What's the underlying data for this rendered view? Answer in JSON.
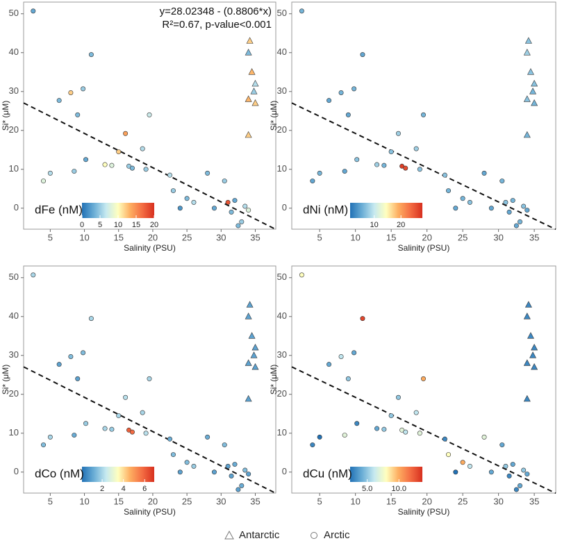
{
  "legend": [
    {
      "name": "Antarctic",
      "marker": "triangle"
    },
    {
      "name": "Arctic",
      "marker": "circle"
    }
  ],
  "colormap": [
    "#2171b5",
    "#6baed6",
    "#c6e9f0",
    "#ffffbf",
    "#fdae61",
    "#f46d43",
    "#d7301f"
  ],
  "chart_data": [
    {
      "type": "scatter",
      "xlabel": "Salinity (PSU)",
      "ylabel": "Si* (μM)",
      "xlim": [
        1.1,
        38
      ],
      "ylim": [
        -5.4,
        53
      ],
      "xticks": [
        5,
        10,
        15,
        20,
        25,
        30,
        35
      ],
      "yticks": [
        0,
        10,
        20,
        30,
        40,
        50
      ],
      "annotation": [
        "y=28.02348 - (0.8806*x)",
        "R²=0.67, p-value<0.001"
      ],
      "fit": {
        "intercept": 28.02348,
        "slope": -0.8806
      },
      "colorbar": {
        "label": "dFe (nM)",
        "range": [
          0,
          20
        ],
        "ticks": [
          0,
          5,
          10,
          15,
          20
        ]
      },
      "series": [
        {
          "x": [
            34,
            34,
            34.2,
            34,
            34.5,
            34.8,
            35,
            35
          ],
          "y": [
            28,
            18.8,
            43,
            40,
            35,
            30,
            32,
            27
          ],
          "c": [
            13,
            12,
            12,
            4,
            13,
            5,
            6,
            12
          ]
        },
        {
          "x": [
            2.5,
            4,
            5,
            6.3,
            8,
            8.5,
            9,
            9.8,
            10.2,
            11,
            13,
            14,
            15,
            16,
            16.5,
            17,
            18.5,
            19,
            19.5,
            22.5,
            23,
            24,
            25,
            26,
            28,
            29,
            30.5,
            31,
            31.5,
            32,
            32.5,
            33,
            33.5,
            34
          ],
          "y": [
            50.7,
            7,
            9,
            27.7,
            29.7,
            9.5,
            24,
            30.7,
            12.5,
            39.5,
            11.2,
            11,
            14.5,
            19.2,
            10.8,
            10.3,
            15.3,
            10,
            24,
            8.5,
            4.5,
            0,
            2.5,
            1.5,
            9,
            0,
            7,
            1.5,
            -1,
            2,
            -4.5,
            -3.5,
            0.5,
            -0.5
          ],
          "c": [
            3,
            8,
            6,
            4,
            12,
            5,
            4,
            5,
            3,
            4,
            10,
            8,
            12,
            14,
            5,
            4,
            6,
            5,
            7,
            6,
            5,
            2,
            4,
            6,
            4,
            3,
            5,
            18,
            4,
            3,
            4,
            5,
            6,
            8
          ]
        }
      ]
    },
    {
      "type": "scatter",
      "xlabel": "Salinity (PSU)",
      "ylabel": "Si* (μM)",
      "xlim": [
        1.1,
        38
      ],
      "ylim": [
        -5.4,
        53
      ],
      "xticks": [
        5,
        10,
        15,
        20,
        25,
        30,
        35
      ],
      "yticks": [
        0,
        10,
        20,
        30,
        40,
        50
      ],
      "fit": {
        "intercept": 28.02348,
        "slope": -0.8806
      },
      "colorbar": {
        "label": "dNi (nM)",
        "range": [
          1,
          28
        ],
        "ticks": [
          10,
          20
        ]
      },
      "series": [
        {
          "x": [
            34,
            34,
            34.2,
            34,
            34.5,
            34.8,
            35,
            35
          ],
          "y": [
            28,
            18.8,
            43,
            40,
            35,
            30,
            32,
            27
          ],
          "c": [
            7,
            6,
            7,
            8,
            7,
            6,
            7,
            6
          ]
        },
        {
          "x": [
            2.5,
            4,
            5,
            6.3,
            8,
            8.5,
            9,
            9.8,
            10.2,
            11,
            13,
            14,
            15,
            16,
            16.5,
            17,
            18.5,
            19,
            19.5,
            22.5,
            23,
            24,
            25,
            26,
            28,
            29,
            30.5,
            31,
            31.5,
            32,
            32.5,
            33,
            33.5,
            34
          ],
          "y": [
            50.7,
            7,
            9,
            27.7,
            29.7,
            9.5,
            24,
            30.7,
            12.5,
            39.5,
            11.2,
            11,
            14.5,
            19.2,
            10.8,
            10.3,
            15.3,
            10,
            24,
            8.5,
            4.5,
            0,
            2.5,
            1.5,
            9,
            0,
            7,
            1.5,
            -1,
            2,
            -4.5,
            -3.5,
            0.5,
            -0.5
          ],
          "c": [
            6,
            5,
            6,
            5,
            6,
            5,
            5,
            6,
            7,
            5,
            8,
            6,
            7,
            8,
            27,
            26,
            8,
            7,
            6,
            7,
            6,
            5,
            6,
            7,
            5,
            5,
            6,
            7,
            5,
            6,
            5,
            6,
            7,
            5
          ]
        }
      ]
    },
    {
      "type": "scatter",
      "xlabel": "Salinity (PSU)",
      "ylabel": "Si* (μM)",
      "xlim": [
        1.1,
        38
      ],
      "ylim": [
        -5.4,
        53
      ],
      "xticks": [
        5,
        10,
        15,
        20,
        25,
        30,
        35
      ],
      "yticks": [
        0,
        10,
        20,
        30,
        40,
        50
      ],
      "fit": {
        "intercept": 28.02348,
        "slope": -0.8806
      },
      "colorbar": {
        "label": "dCo (nM)",
        "range": [
          0.1,
          6.9
        ],
        "ticks": [
          2,
          4,
          6
        ]
      },
      "series": [
        {
          "x": [
            34,
            34,
            34.2,
            34,
            34.5,
            34.8,
            35,
            35
          ],
          "y": [
            28,
            18.8,
            43,
            40,
            35,
            30,
            32,
            27
          ],
          "c": [
            1,
            1,
            1,
            1,
            1,
            1,
            1,
            1
          ]
        },
        {
          "x": [
            2.5,
            4,
            5,
            6.3,
            8,
            8.5,
            9,
            9.8,
            10.2,
            11,
            13,
            14,
            15,
            16,
            16.5,
            17,
            18.5,
            19,
            19.5,
            22.5,
            23,
            24,
            25,
            26,
            28,
            29,
            30.5,
            31,
            31.5,
            32,
            32.5,
            33,
            33.5,
            34
          ],
          "y": [
            50.7,
            7,
            9,
            27.7,
            29.7,
            9.5,
            24,
            30.7,
            12.5,
            39.5,
            11.2,
            11,
            14.5,
            19.2,
            10.8,
            10.3,
            15.3,
            10,
            24,
            8.5,
            4.5,
            0,
            2.5,
            1.5,
            9,
            0,
            7,
            1.5,
            -1,
            2,
            -4.5,
            -3.5,
            0.5,
            -0.5
          ],
          "c": [
            2,
            1.5,
            2,
            1,
            1.5,
            1.2,
            1,
            1.5,
            1.8,
            2,
            2,
            1.8,
            2,
            2.2,
            6,
            5.8,
            2,
            2.2,
            2,
            1.2,
            1.5,
            1,
            1.5,
            1.8,
            1.2,
            1,
            1.5,
            1,
            1,
            1.2,
            1,
            1.2,
            1.5,
            1
          ]
        }
      ]
    },
    {
      "type": "scatter",
      "xlabel": "Salinity (PSU)",
      "ylabel": "Si* (μM)",
      "xlim": [
        1.1,
        38
      ],
      "ylim": [
        -5.4,
        53
      ],
      "xticks": [
        5,
        10,
        15,
        20,
        25,
        30,
        35
      ],
      "yticks": [
        0,
        10,
        20,
        30,
        40,
        50
      ],
      "fit": {
        "intercept": 28.02348,
        "slope": -0.8806
      },
      "colorbar": {
        "label": "dCu (nM)",
        "range": [
          2.3,
          13.7
        ],
        "ticks": [
          {
            "value": 5,
            "label": "5.0"
          },
          {
            "value": 10,
            "label": "10.0"
          }
        ]
      },
      "series": [
        {
          "x": [
            34,
            34,
            34.2,
            34,
            34.5,
            34.8,
            35,
            35
          ],
          "y": [
            28,
            18.8,
            43,
            40,
            35,
            30,
            32,
            27
          ],
          "c": [
            3,
            3,
            3,
            3,
            3,
            3,
            3,
            3
          ]
        },
        {
          "x": [
            2.5,
            4,
            5,
            6.3,
            8,
            8.5,
            9,
            9.8,
            10.2,
            11,
            13,
            14,
            15,
            16,
            16.5,
            17,
            18.5,
            19,
            19.5,
            22.5,
            23,
            24,
            25,
            26,
            28,
            29,
            30.5,
            31,
            31.5,
            32,
            32.5,
            33,
            33.5,
            34
          ],
          "y": [
            50.7,
            7,
            9,
            27.7,
            29.7,
            9.5,
            24,
            30.7,
            12.5,
            39.5,
            11.2,
            11,
            14.5,
            19.2,
            10.8,
            10.3,
            15.3,
            10,
            24,
            8.5,
            4.5,
            0,
            2.5,
            1.5,
            9,
            0,
            7,
            1.5,
            -1,
            2,
            -4.5,
            -3.5,
            0.5,
            -0.5
          ],
          "c": [
            8,
            3,
            2,
            4,
            6,
            7,
            5,
            4,
            3,
            13,
            4,
            5,
            5,
            5,
            7,
            6,
            6,
            7,
            10,
            3,
            8,
            2,
            10,
            6,
            7,
            4,
            4,
            5,
            3,
            4,
            3,
            4,
            5,
            4
          ]
        }
      ]
    }
  ]
}
